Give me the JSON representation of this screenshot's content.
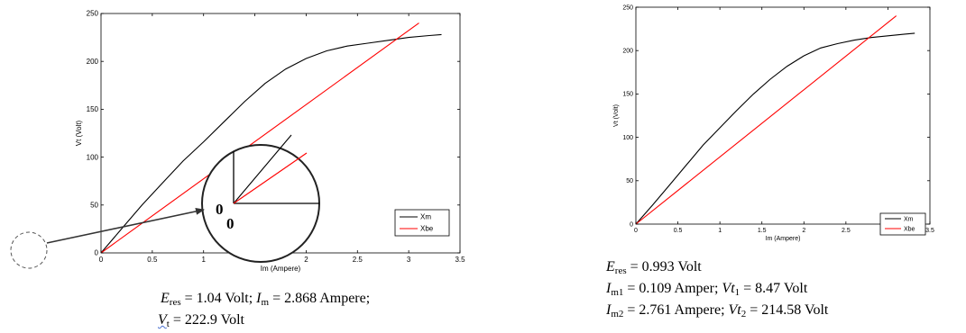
{
  "colors": {
    "xm": "#000000",
    "xbe": "#ff0000",
    "axis": "#000000",
    "zoom": "#222222"
  },
  "chart_data": [
    {
      "type": "line",
      "title": "",
      "xlabel": "Im (Ampere)",
      "ylabel": "Vt (Volt)",
      "xlim": [
        0,
        3.5
      ],
      "ylim": [
        0,
        250
      ],
      "xticks": [
        0,
        0.5,
        1,
        1.5,
        2,
        2.5,
        3,
        3.5
      ],
      "yticks": [
        0,
        50,
        100,
        150,
        200,
        250
      ],
      "xtick_labels": [
        "0",
        "0.5",
        "1",
        "1.5",
        "2",
        "2.5",
        "3",
        "3.5"
      ],
      "ytick_labels": [
        "0",
        "50",
        "100",
        "150",
        "200",
        "250"
      ],
      "legend_position": "bottom-right",
      "grid": false,
      "series": [
        {
          "name": "Xm",
          "color": "#000000",
          "x": [
            0,
            0.2,
            0.4,
            0.6,
            0.8,
            1.0,
            1.2,
            1.4,
            1.6,
            1.8,
            2.0,
            2.2,
            2.4,
            2.6,
            2.8,
            3.0,
            3.2,
            3.32
          ],
          "y": [
            0,
            25,
            50,
            73,
            96,
            116,
            137,
            158,
            177,
            192,
            203,
            211,
            216,
            219,
            222,
            225,
            227,
            228
          ]
        },
        {
          "name": "Xbe",
          "color": "#ff0000",
          "x": [
            0,
            3.1
          ],
          "y": [
            0,
            240
          ]
        }
      ],
      "annotations": {
        "inset_labels": [
          "0",
          "0"
        ]
      }
    },
    {
      "type": "line",
      "title": "",
      "xlabel": "Im (Ampere)",
      "ylabel": "Vt (Volt)",
      "xlim": [
        0,
        3.5
      ],
      "ylim": [
        0,
        250
      ],
      "xticks": [
        0,
        0.5,
        1,
        1.5,
        2,
        2.5,
        3,
        3.5
      ],
      "yticks": [
        0,
        50,
        100,
        150,
        200,
        250
      ],
      "xtick_labels": [
        "0",
        "0.5",
        "1",
        "1.5",
        "2",
        "2.5",
        "3",
        "3.5"
      ],
      "ytick_labels": [
        "0",
        "50",
        "100",
        "150",
        "200",
        "250"
      ],
      "legend_position": "bottom-right",
      "grid": false,
      "series": [
        {
          "name": "Xm",
          "color": "#000000",
          "x": [
            0,
            0.2,
            0.4,
            0.6,
            0.8,
            1.0,
            1.2,
            1.4,
            1.6,
            1.8,
            2.0,
            2.2,
            2.4,
            2.6,
            2.8,
            3.0,
            3.2,
            3.32
          ],
          "y": [
            0,
            22,
            45,
            68,
            91,
            111,
            131,
            150,
            167,
            182,
            194,
            203,
            208,
            212,
            215,
            217,
            219,
            220
          ]
        },
        {
          "name": "Xbe",
          "color": "#ff0000",
          "x": [
            0,
            3.1
          ],
          "y": [
            0,
            240
          ]
        }
      ]
    }
  ],
  "captions": {
    "left": {
      "e_sym": "E",
      "e_sub": "res",
      "e_val": " = 1.04 Volt; ",
      "i_sym": "I",
      "i_sub": "m",
      "i_val": " = 2.868 Ampere;",
      "v_sym": "V",
      "v_sub": "t",
      "v_val": " = 222.9 Volt"
    },
    "right": {
      "e_sym": "E",
      "e_sub": "res",
      "e_val": " = 0.993 Volt",
      "i1_sym": "I",
      "i1_sub": "m1",
      "i1_val": " = 0.109 Amper; ",
      "v1_sym": "V",
      "v1_t": "t",
      "v1_sub": "1",
      "v1_val": " = 8.47 Volt",
      "i2_sym": "I",
      "i2_sub": "m2",
      "i2_val": " = 2.761 Ampere; ",
      "v2_sym": "V",
      "v2_t": "t",
      "v2_sub": "2",
      "v2_val": " = 214.58 Volt"
    }
  }
}
